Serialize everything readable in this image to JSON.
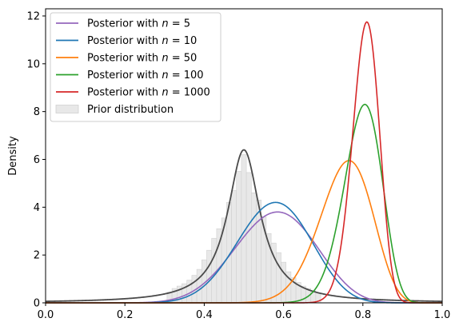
{
  "chart_data": {
    "type": "line",
    "title": "",
    "xlabel": "",
    "ylabel": "Density",
    "xlim": [
      0.0,
      1.0
    ],
    "ylim": [
      0,
      12.3
    ],
    "x_ticks": [
      "0.0",
      "0.2",
      "0.4",
      "0.6",
      "0.8",
      "1.0"
    ],
    "y_ticks": [
      "0",
      "2",
      "4",
      "6",
      "8",
      "10",
      "12"
    ],
    "grid": false,
    "legend_position": "top-left",
    "series": [
      {
        "name": "Posterior with $n = 5$",
        "legend_label": "Posterior with ",
        "legend_math": "n",
        "legend_value": " = 5",
        "color": "#9467bd",
        "kind": "beta",
        "mode": 0.585,
        "peak": 3.8
      },
      {
        "name": "Posterior with $n = 10$",
        "legend_label": "Posterior with ",
        "legend_math": "n",
        "legend_value": " = 10",
        "color": "#1f77b4",
        "kind": "beta",
        "mode": 0.58,
        "peak": 4.2
      },
      {
        "name": "Posterior with $n = 50$",
        "legend_label": "Posterior with ",
        "legend_math": "n",
        "legend_value": " = 50",
        "color": "#ff7f0e",
        "kind": "beta",
        "mode": 0.765,
        "peak": 5.95
      },
      {
        "name": "Posterior with $n = 100$",
        "legend_label": "Posterior with ",
        "legend_math": "n",
        "legend_value": " = 100",
        "color": "#2ca02c",
        "kind": "beta",
        "mode": 0.805,
        "peak": 8.3
      },
      {
        "name": "Posterior with $n = 1000$",
        "legend_label": "Posterior with ",
        "legend_math": "n",
        "legend_value": " = 1000",
        "color": "#d62728",
        "kind": "beta",
        "mode": 0.81,
        "peak": 11.75
      }
    ],
    "prior_line": {
      "color": "#4a4a4a",
      "center": 0.5,
      "peak": 6.4,
      "shape": "cauchy"
    },
    "prior_histogram": {
      "name": "Prior distribution",
      "color": "#e8e8e8",
      "edge_color": "#d0d0d0",
      "bin_width": 0.0125,
      "bins": [
        [
          0.3125,
          0.45
        ],
        [
          0.325,
          0.6
        ],
        [
          0.3375,
          0.7
        ],
        [
          0.35,
          0.8
        ],
        [
          0.3625,
          0.95
        ],
        [
          0.375,
          1.15
        ],
        [
          0.3875,
          1.4
        ],
        [
          0.4,
          1.8
        ],
        [
          0.4125,
          2.2
        ],
        [
          0.425,
          2.7
        ],
        [
          0.4375,
          3.1
        ],
        [
          0.45,
          3.55
        ],
        [
          0.4625,
          4.2
        ],
        [
          0.475,
          4.7
        ],
        [
          0.4875,
          5.5
        ],
        [
          0.5,
          6.2
        ],
        [
          0.5125,
          5.45
        ],
        [
          0.525,
          4.6
        ],
        [
          0.5375,
          4.3
        ],
        [
          0.55,
          3.6
        ],
        [
          0.5625,
          2.9
        ],
        [
          0.575,
          2.5
        ],
        [
          0.5875,
          2.1
        ],
        [
          0.6,
          1.7
        ],
        [
          0.6125,
          1.3
        ],
        [
          0.625,
          1.05
        ],
        [
          0.6375,
          0.85
        ],
        [
          0.65,
          0.7
        ],
        [
          0.6625,
          0.6
        ],
        [
          0.675,
          0.5
        ],
        [
          0.6875,
          0.42
        ]
      ]
    }
  }
}
